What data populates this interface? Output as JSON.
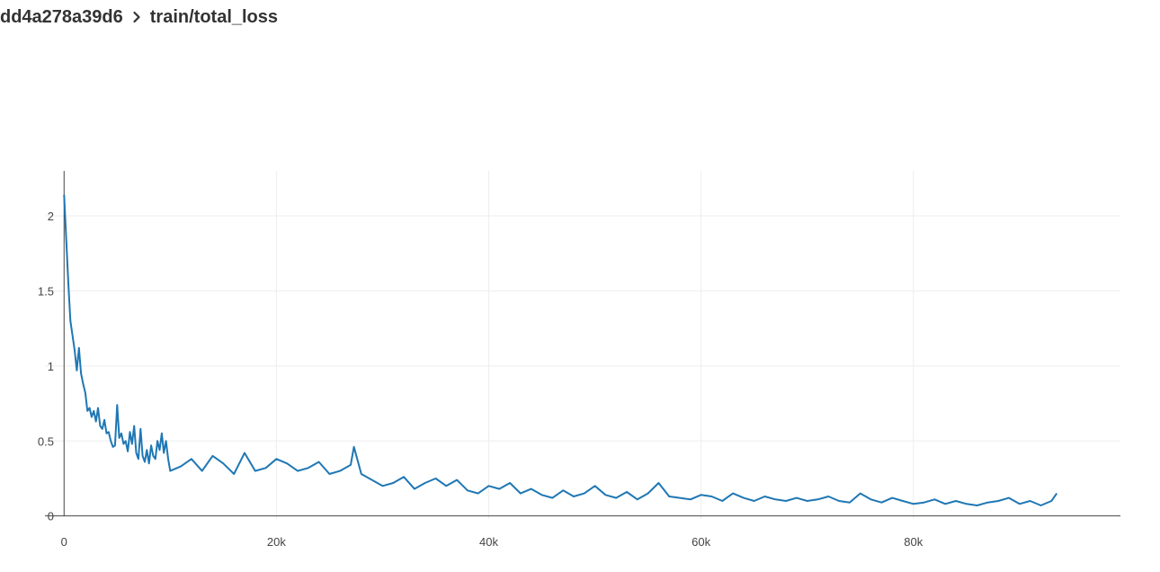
{
  "breadcrumb": {
    "parent": "dd4a278a39d6",
    "current": "train/total_loss",
    "separator_icon": "chevron-right-icon"
  },
  "colors": {
    "line": "#1f77b4",
    "grid": "#eeeeee",
    "axis": "#444444",
    "title": "#333333"
  },
  "chart_data": {
    "type": "line",
    "title": "",
    "xlabel": "",
    "ylabel": "",
    "xlim": [
      -1800,
      99500
    ],
    "ylim": [
      -0.02,
      2.3
    ],
    "grid": true,
    "legend": "none",
    "x_ticks": [
      0,
      20000,
      40000,
      60000,
      80000
    ],
    "x_tick_labels": [
      "0",
      "20k",
      "40k",
      "60k",
      "80k"
    ],
    "y_ticks": [
      0,
      0.5,
      1,
      1.5,
      2
    ],
    "y_tick_labels": [
      "0",
      "0.5",
      "1",
      "1.5",
      "2"
    ],
    "series": [
      {
        "x": [
          0,
          200,
          400,
          600,
          800,
          1000,
          1200,
          1400,
          1600,
          1800,
          2000,
          2200,
          2400,
          2600,
          2800,
          3000,
          3200,
          3400,
          3600,
          3800,
          4000,
          4200,
          4400,
          4600,
          4800,
          5000,
          5200,
          5400,
          5600,
          5800,
          6000,
          6200,
          6400,
          6600,
          6800,
          7000,
          7200,
          7400,
          7600,
          7800,
          8000,
          8200,
          8400,
          8600,
          8800,
          9000,
          9200,
          9400,
          9600,
          9800,
          10000,
          11000,
          12000,
          13000,
          14000,
          15000,
          16000,
          17000,
          18000,
          19000,
          20000,
          21000,
          22000,
          23000,
          24000,
          25000,
          26000,
          27000,
          27300,
          28000,
          29000,
          30000,
          31000,
          32000,
          33000,
          34000,
          35000,
          36000,
          37000,
          38000,
          39000,
          40000,
          41000,
          42000,
          43000,
          44000,
          45000,
          46000,
          47000,
          48000,
          49000,
          50000,
          51000,
          52000,
          53000,
          54000,
          55000,
          56000,
          57000,
          58000,
          59000,
          60000,
          61000,
          62000,
          63000,
          64000,
          65000,
          66000,
          67000,
          68000,
          69000,
          70000,
          71000,
          72000,
          73000,
          74000,
          75000,
          76000,
          77000,
          78000,
          79000,
          80000,
          81000,
          82000,
          83000,
          84000,
          85000,
          86000,
          87000,
          88000,
          89000,
          90000,
          91000,
          92000,
          93000,
          93500
        ],
        "values": [
          2.14,
          1.85,
          1.55,
          1.3,
          1.2,
          1.1,
          0.97,
          1.12,
          0.95,
          0.88,
          0.82,
          0.7,
          0.72,
          0.66,
          0.7,
          0.63,
          0.72,
          0.6,
          0.58,
          0.64,
          0.55,
          0.56,
          0.5,
          0.46,
          0.47,
          0.74,
          0.52,
          0.55,
          0.48,
          0.5,
          0.43,
          0.56,
          0.48,
          0.6,
          0.42,
          0.38,
          0.58,
          0.4,
          0.36,
          0.44,
          0.35,
          0.47,
          0.4,
          0.38,
          0.5,
          0.44,
          0.55,
          0.42,
          0.5,
          0.38,
          0.3,
          0.33,
          0.38,
          0.3,
          0.4,
          0.35,
          0.28,
          0.42,
          0.3,
          0.32,
          0.38,
          0.35,
          0.3,
          0.32,
          0.36,
          0.28,
          0.3,
          0.34,
          0.46,
          0.28,
          0.24,
          0.2,
          0.22,
          0.26,
          0.18,
          0.22,
          0.25,
          0.2,
          0.24,
          0.17,
          0.15,
          0.2,
          0.18,
          0.22,
          0.15,
          0.18,
          0.14,
          0.12,
          0.17,
          0.13,
          0.15,
          0.2,
          0.14,
          0.12,
          0.16,
          0.11,
          0.15,
          0.22,
          0.13,
          0.12,
          0.11,
          0.14,
          0.13,
          0.1,
          0.15,
          0.12,
          0.1,
          0.13,
          0.11,
          0.1,
          0.12,
          0.1,
          0.11,
          0.13,
          0.1,
          0.09,
          0.15,
          0.11,
          0.09,
          0.12,
          0.1,
          0.08,
          0.09,
          0.11,
          0.08,
          0.1,
          0.08,
          0.07,
          0.09,
          0.1,
          0.12,
          0.08,
          0.1,
          0.07,
          0.1,
          0.15
        ]
      }
    ]
  }
}
